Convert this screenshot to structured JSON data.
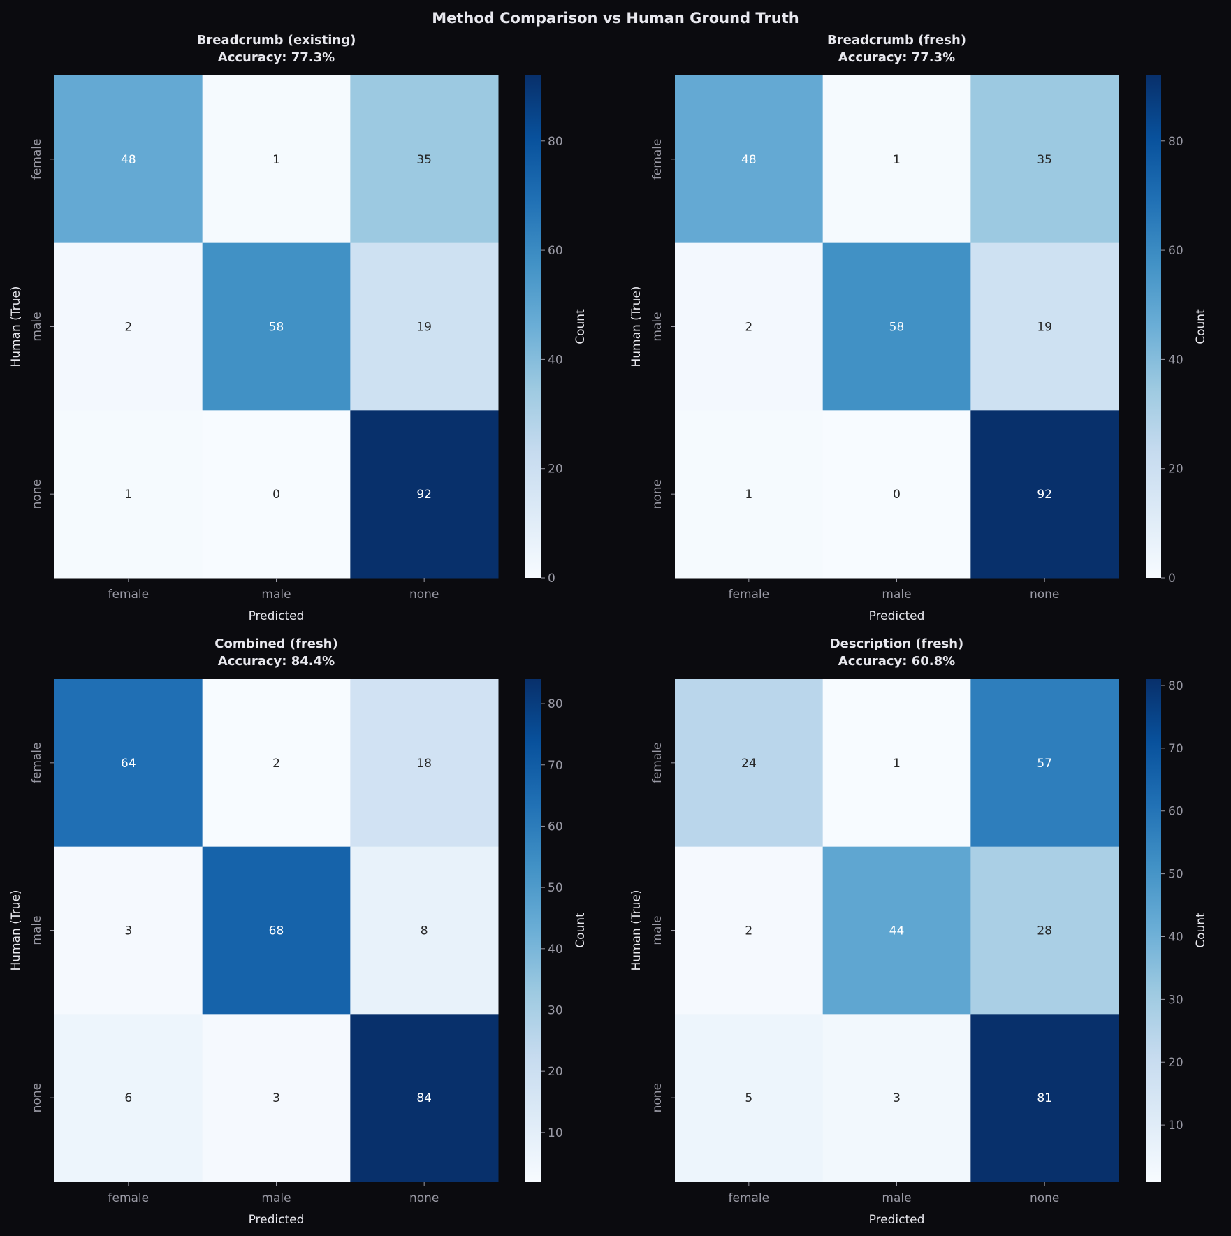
{
  "title": "Method Comparison vs Human Ground Truth",
  "colors": {
    "background": "#0b0b0f",
    "text": "#e8e8ee",
    "tick": "#9a9aa5",
    "colormap": "Blues"
  },
  "chart_data": [
    {
      "type": "heatmap",
      "title": "Breadcrumb (existing)",
      "subtitle": "Accuracy: 77.3%",
      "xlabel": "Predicted",
      "ylabel": "Human (True)",
      "x_categories": [
        "female",
        "male",
        "none"
      ],
      "y_categories": [
        "female",
        "male",
        "none"
      ],
      "values": [
        [
          48,
          1,
          35
        ],
        [
          2,
          58,
          19
        ],
        [
          1,
          0,
          92
        ]
      ],
      "colorbar": {
        "label": "Count",
        "range": [
          0,
          92
        ],
        "ticks": [
          0,
          20,
          40,
          60,
          80
        ]
      }
    },
    {
      "type": "heatmap",
      "title": "Breadcrumb (fresh)",
      "subtitle": "Accuracy: 77.3%",
      "xlabel": "Predicted",
      "ylabel": "Human (True)",
      "x_categories": [
        "female",
        "male",
        "none"
      ],
      "y_categories": [
        "female",
        "male",
        "none"
      ],
      "values": [
        [
          48,
          1,
          35
        ],
        [
          2,
          58,
          19
        ],
        [
          1,
          0,
          92
        ]
      ],
      "colorbar": {
        "label": "Count",
        "range": [
          0,
          92
        ],
        "ticks": [
          0,
          20,
          40,
          60,
          80
        ]
      }
    },
    {
      "type": "heatmap",
      "title": "Combined (fresh)",
      "subtitle": "Accuracy: 84.4%",
      "xlabel": "Predicted",
      "ylabel": "Human (True)",
      "x_categories": [
        "female",
        "male",
        "none"
      ],
      "y_categories": [
        "female",
        "male",
        "none"
      ],
      "values": [
        [
          64,
          2,
          18
        ],
        [
          3,
          68,
          8
        ],
        [
          6,
          3,
          84
        ]
      ],
      "colorbar": {
        "label": "Count",
        "range": [
          2,
          84
        ],
        "ticks": [
          10,
          20,
          30,
          40,
          50,
          60,
          70,
          80
        ]
      }
    },
    {
      "type": "heatmap",
      "title": "Description (fresh)",
      "subtitle": "Accuracy: 60.8%",
      "xlabel": "Predicted",
      "ylabel": "Human (True)",
      "x_categories": [
        "female",
        "male",
        "none"
      ],
      "y_categories": [
        "female",
        "male",
        "none"
      ],
      "values": [
        [
          24,
          1,
          57
        ],
        [
          2,
          44,
          28
        ],
        [
          5,
          3,
          81
        ]
      ],
      "colorbar": {
        "label": "Count",
        "range": [
          1,
          81
        ],
        "ticks": [
          10,
          20,
          30,
          40,
          50,
          60,
          70,
          80
        ]
      }
    }
  ]
}
